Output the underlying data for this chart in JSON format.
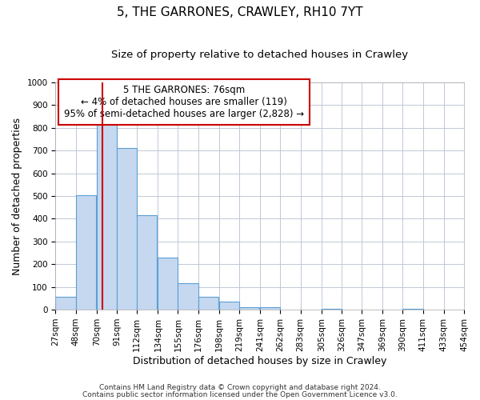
{
  "title": "5, THE GARRONES, CRAWLEY, RH10 7YT",
  "subtitle": "Size of property relative to detached houses in Crawley",
  "xlabel": "Distribution of detached houses by size in Crawley",
  "ylabel": "Number of detached properties",
  "bar_left_edges": [
    27,
    48,
    70,
    91,
    112,
    134,
    155,
    176,
    198,
    219,
    241,
    262,
    283,
    305,
    326,
    347,
    369,
    390,
    411,
    433
  ],
  "bar_heights": [
    55,
    505,
    820,
    710,
    415,
    230,
    118,
    57,
    35,
    12,
    12,
    0,
    0,
    5,
    0,
    0,
    0,
    5,
    0,
    0
  ],
  "bin_width": 21,
  "bar_color": "#c5d8f0",
  "bar_edge_color": "#5a9fd4",
  "bar_edge_width": 0.8,
  "vline_x": 76,
  "vline_color": "#cc0000",
  "ylim": [
    0,
    1000
  ],
  "yticks": [
    0,
    100,
    200,
    300,
    400,
    500,
    600,
    700,
    800,
    900,
    1000
  ],
  "xtick_labels": [
    "27sqm",
    "48sqm",
    "70sqm",
    "91sqm",
    "112sqm",
    "134sqm",
    "155sqm",
    "176sqm",
    "198sqm",
    "219sqm",
    "241sqm",
    "262sqm",
    "283sqm",
    "305sqm",
    "326sqm",
    "347sqm",
    "369sqm",
    "390sqm",
    "411sqm",
    "433sqm",
    "454sqm"
  ],
  "annotation_title": "5 THE GARRONES: 76sqm",
  "annotation_line1": "← 4% of detached houses are smaller (119)",
  "annotation_line2": "95% of semi-detached houses are larger (2,828) →",
  "annotation_box_color": "#ffffff",
  "annotation_box_edge_color": "#cc0000",
  "footnote1": "Contains HM Land Registry data © Crown copyright and database right 2024.",
  "footnote2": "Contains public sector information licensed under the Open Government Licence v3.0.",
  "background_color": "#ffffff",
  "grid_color": "#c0c8d8",
  "title_fontsize": 11,
  "subtitle_fontsize": 9.5,
  "axis_label_fontsize": 9,
  "tick_fontsize": 7.5,
  "annotation_fontsize": 8.5,
  "footnote_fontsize": 6.5
}
